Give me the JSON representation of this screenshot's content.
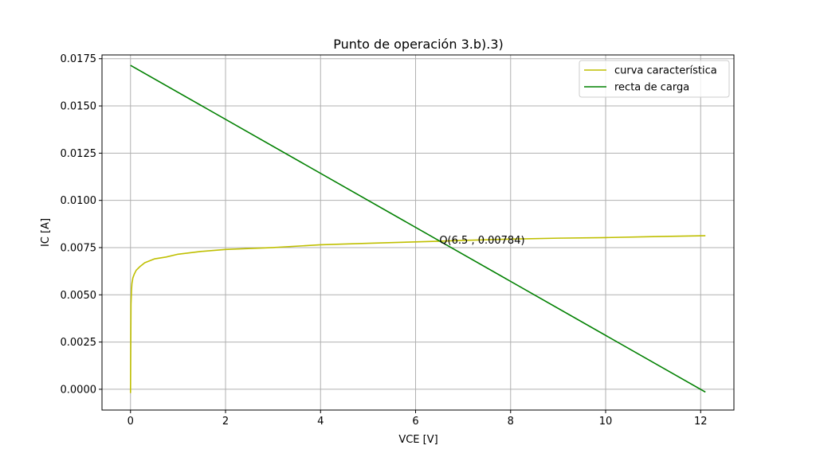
{
  "chart_data": {
    "type": "line",
    "title": "Punto de operación 3.b).3)",
    "xlabel": "VCE [V]",
    "ylabel": "IC [A]",
    "xlim": [
      -0.6,
      12.7
    ],
    "ylim": [
      -0.0011,
      0.0177
    ],
    "x_ticks": [
      0,
      2,
      4,
      6,
      8,
      10,
      12
    ],
    "x_tick_labels": [
      "0",
      "2",
      "4",
      "6",
      "8",
      "10",
      "12"
    ],
    "y_ticks": [
      0.0,
      0.0025,
      0.005,
      0.0075,
      0.01,
      0.0125,
      0.015,
      0.0175
    ],
    "y_tick_labels": [
      "0.0000",
      "0.0025",
      "0.0050",
      "0.0075",
      "0.0100",
      "0.0125",
      "0.0150",
      "0.0175"
    ],
    "grid": true,
    "legend_position": "top-right",
    "series": [
      {
        "name": "curva característica",
        "color": "#bfbf00",
        "x": [
          0.0,
          0.01,
          0.02,
          0.03,
          0.05,
          0.08,
          0.12,
          0.2,
          0.3,
          0.5,
          0.75,
          1.0,
          1.5,
          2.0,
          3.0,
          4.0,
          5.0,
          6.0,
          6.5,
          7.0,
          8.0,
          9.0,
          10.0,
          11.0,
          12.1
        ],
        "y": [
          -0.0002,
          0.0045,
          0.0052,
          0.0056,
          0.0059,
          0.0061,
          0.0063,
          0.0065,
          0.0067,
          0.0069,
          0.007,
          0.00715,
          0.0073,
          0.0074,
          0.0075,
          0.00765,
          0.00773,
          0.0078,
          0.00784,
          0.00788,
          0.00795,
          0.008,
          0.00803,
          0.00808,
          0.00813
        ]
      },
      {
        "name": "recta de carga",
        "color": "#008000",
        "x": [
          0.0,
          12.1
        ],
        "y": [
          0.01715,
          -0.00015
        ]
      }
    ],
    "annotations": [
      {
        "text": "Q(6.5 , 0.00784)",
        "x": 6.5,
        "y": 0.00784
      }
    ]
  }
}
